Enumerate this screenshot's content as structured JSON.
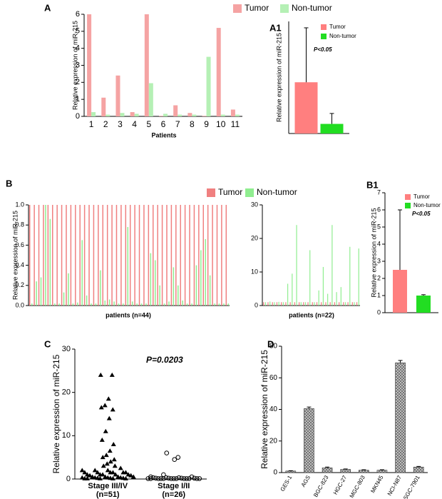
{
  "chart_data": [
    {
      "type": "bar",
      "panel": "A",
      "y_label": "Relative expression of miR-215",
      "x_label": "Patients",
      "categories": [
        "1",
        "2",
        "3",
        "4",
        "5",
        "6",
        "7",
        "8",
        "9",
        "10",
        "11"
      ],
      "series": [
        {
          "name": "Tumor",
          "color": "#f5a3a3",
          "values": [
            6.0,
            1.1,
            2.4,
            0.25,
            6.0,
            0.03,
            0.65,
            0.2,
            0.03,
            5.2,
            0.4
          ]
        },
        {
          "name": "Non-tumor",
          "color": "#b5f0b5",
          "values": [
            0.25,
            0.1,
            0.2,
            0.15,
            1.95,
            0.15,
            0.1,
            0.1,
            3.5,
            0.1,
            0.1
          ]
        }
      ],
      "ylim": [
        0,
        6
      ],
      "yticks": [
        0,
        1,
        2,
        3,
        4,
        5,
        6
      ],
      "legend": "top"
    },
    {
      "type": "bar",
      "panel": "A1",
      "y_label": "Relative expression of miR-215",
      "annotation": "P<0.05",
      "series": [
        {
          "name": "Tumor",
          "color": "#ff7f7f",
          "values": [
            3.2
          ],
          "errors": [
            3.4
          ]
        },
        {
          "name": "Non-tumor",
          "color": "#22dd22",
          "values": [
            0.6
          ],
          "errors": [
            0.65
          ]
        }
      ],
      "ylim": [
        0,
        7
      ],
      "legend": "upper right"
    },
    {
      "type": "bar",
      "panel": "B",
      "y_label": "Relative expression of miR-215",
      "x_label": "patients (n=44)",
      "series": [
        {
          "name": "Tumor",
          "color": "#f08080",
          "values": [
            1,
            1,
            1,
            1,
            1,
            1,
            1,
            1,
            1,
            1,
            1,
            1,
            1,
            1,
            1,
            1,
            1,
            1,
            1,
            1,
            1,
            1,
            1,
            1,
            1,
            1,
            1,
            1,
            1,
            1,
            1,
            1,
            1,
            1,
            1,
            1,
            1,
            1,
            1,
            1,
            1,
            1,
            1,
            1
          ]
        },
        {
          "name": "Non-tumor",
          "color": "#90ee90",
          "values": [
            0.02,
            0.24,
            0.28,
            1.0,
            0.86,
            0.02,
            0.02,
            0.13,
            0.32,
            0.02,
            0.03,
            0.65,
            0.1,
            0.02,
            0.02,
            0.35,
            0.05,
            0.06,
            0.04,
            0.02,
            0.02,
            0.78,
            0.04,
            0.02,
            0.02,
            0.02,
            0.52,
            0.45,
            0.2,
            0.02,
            0.04,
            0.38,
            0.2,
            0.05,
            0.02,
            0.02,
            0.4,
            0.55,
            0.66,
            0.3,
            0.02,
            0.02,
            0.02,
            0.02
          ]
        }
      ],
      "ylim": [
        0,
        1
      ],
      "yticks": [
        {
          "value": 0,
          "label": "0.0"
        },
        {
          "value": 0.2,
          "label": "0.2"
        },
        {
          "value": 0.4,
          "label": "0.4"
        },
        {
          "value": 0.6,
          "label": "0.6"
        },
        {
          "value": 0.8,
          "label": "0.8"
        },
        {
          "value": 1,
          "label": "1.0"
        }
      ],
      "legend": "top"
    },
    {
      "type": "bar",
      "x_label": "patients (n=22)",
      "series": [
        {
          "color": "#f08080",
          "values": [
            1,
            1,
            1,
            1,
            1,
            1,
            1,
            1,
            1,
            1,
            1,
            1,
            1,
            1,
            1,
            1,
            1,
            1,
            1,
            1,
            1,
            1
          ]
        },
        {
          "color": "#90ee90",
          "values": [
            1,
            1.2,
            1,
            1.1,
            1,
            6.5,
            9.5,
            24,
            1,
            1,
            16.5,
            1,
            4.5,
            11.5,
            3.5,
            24,
            4,
            5.5,
            1,
            17.5,
            1,
            17
          ]
        }
      ],
      "ylim": [
        0,
        30
      ],
      "yticks": [
        0,
        10,
        20,
        30
      ]
    },
    {
      "type": "bar",
      "panel": "B1",
      "y_label": "Relative expression of miR-215",
      "annotation": "P<0.05",
      "series": [
        {
          "name": "Tumor",
          "color": "#ff7f7f",
          "values": [
            2.5
          ],
          "errors": [
            3.5
          ]
        },
        {
          "name": "Non-tumor",
          "color": "#22dd22",
          "values": [
            1.0
          ],
          "errors": [
            0.05
          ]
        }
      ],
      "ylim": [
        0,
        7
      ],
      "yticks": [
        0,
        1,
        2,
        3,
        4,
        5,
        6,
        7
      ],
      "legend": "upper right"
    },
    {
      "type": "strip",
      "panel": "C",
      "y_label": "Relative expression of miR-215",
      "annotation": "P=0.0203",
      "categories": [
        "Stage III/IV",
        "Stage I/II"
      ],
      "n_labels": [
        "(n=51)",
        "(n=26)"
      ],
      "series": [
        {
          "marker": "triangle",
          "color": "#000000",
          "values": [
            24,
            24,
            18.5,
            17,
            16.5,
            16,
            14,
            11,
            9,
            8,
            6.5,
            5.5,
            5,
            4.5,
            4,
            3.5,
            3,
            3,
            2.5,
            2,
            2,
            2,
            1.5,
            1.5,
            1.5,
            1.5,
            1.5,
            1.5,
            1,
            1,
            1,
            1,
            1,
            0.8,
            0.8,
            0.5,
            0.5,
            0.5,
            0.5,
            0.3,
            0.3,
            0.3,
            0.3,
            0.2,
            0.2,
            0.2,
            0.1,
            0.1,
            0.1,
            0.1,
            0.1
          ]
        },
        {
          "marker": "circle",
          "color": "#000000",
          "values": [
            6,
            5,
            4.5,
            1,
            0.5,
            0.5,
            0.3,
            0.3,
            0.3,
            0.2,
            0.2,
            0.2,
            0.2,
            0.1,
            0.1,
            0.1,
            0.1,
            0.1,
            0.1,
            0.1,
            0.1,
            0.1,
            0.1,
            0.1,
            0.1,
            0.1
          ]
        }
      ],
      "ylim": [
        0,
        30
      ],
      "yticks": [
        0,
        10,
        20,
        30
      ]
    },
    {
      "type": "bar",
      "panel": "D",
      "y_label": "Relative expression of miR-215",
      "categories": [
        "GES-1",
        "AGS",
        "BGC-823",
        "HGC-27",
        "MGC-803",
        "MKN45",
        "NCI-N87",
        "SGC-7901"
      ],
      "series": [
        {
          "color": "#999999",
          "pattern": "hatch",
          "values": [
            1,
            40.5,
            3,
            2,
            1.5,
            1.5,
            69.5,
            3.5
          ],
          "errors": [
            0.2,
            1,
            0.5,
            0.3,
            0.3,
            0.3,
            1.5,
            0.4
          ]
        }
      ],
      "ylim": [
        0,
        80
      ],
      "yticks": [
        0,
        20,
        40,
        60,
        80
      ]
    }
  ]
}
